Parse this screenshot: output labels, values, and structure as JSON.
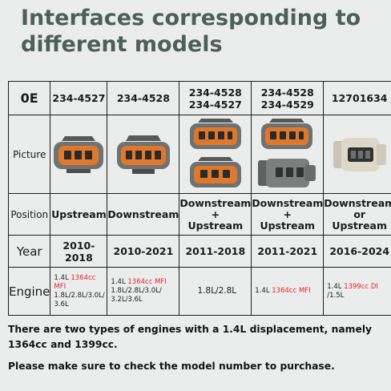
{
  "title": {
    "line1": "Interfaces corresponding to",
    "line2": "different models"
  },
  "table": {
    "header": {
      "label": "0E",
      "models": [
        {
          "line1": "234-4527",
          "line2": ""
        },
        {
          "line1": "234-4528",
          "line2": ""
        },
        {
          "line1": "234-4528",
          "line2": "234-4527"
        },
        {
          "line1": "234-4528",
          "line2": "234-4529"
        },
        {
          "line1": "12701634",
          "line2": ""
        }
      ]
    },
    "picture_label": "Picture",
    "position_label": "Position",
    "positions": [
      {
        "line1": "Upstream",
        "line2": "",
        "line3": ""
      },
      {
        "line1": "Downstream",
        "line2": "",
        "line3": ""
      },
      {
        "line1": "Downstream",
        "line2": "+",
        "line3": "Upstream"
      },
      {
        "line1": "Downstream",
        "line2": "+",
        "line3": "Upstream"
      },
      {
        "line1": "Downstream",
        "line2": "or",
        "line3": "Upstream"
      }
    ],
    "year_label": "Year",
    "years": [
      "2010-2018",
      "2010-2021",
      "2011-2018",
      "2011-2021",
      "2016-2024"
    ],
    "engine_label": "Engine",
    "engines": [
      {
        "pre": "1.4L ",
        "red": "1364cc MFI",
        "rest1": "1.8L/2.8L/3.0L/",
        "rest2": "3.6L"
      },
      {
        "pre": "1.4L ",
        "red": "1364cc MFI",
        "rest1": "1.8L/2.8L/3.0L/",
        "rest2": "3.2L/3.6L"
      },
      {
        "plain": "1.8L/2.8L"
      },
      {
        "pre": "1.4L ",
        "red": "1364cc MFI"
      },
      {
        "pre": "1.4L ",
        "red": "1399cc DI",
        "rest1": "/1.5L"
      }
    ]
  },
  "notes": {
    "line1": "There are two types of engines with a 1.4L displacement, namely",
    "line2": "1364cc and 1399cc.",
    "line3": "Please make sure to check the model number to purchase."
  },
  "colors": {
    "title": "#4e5e58",
    "highlight": "#e3231f",
    "connector_orange": "#e0782c",
    "connector_gray": "#6e7270"
  }
}
